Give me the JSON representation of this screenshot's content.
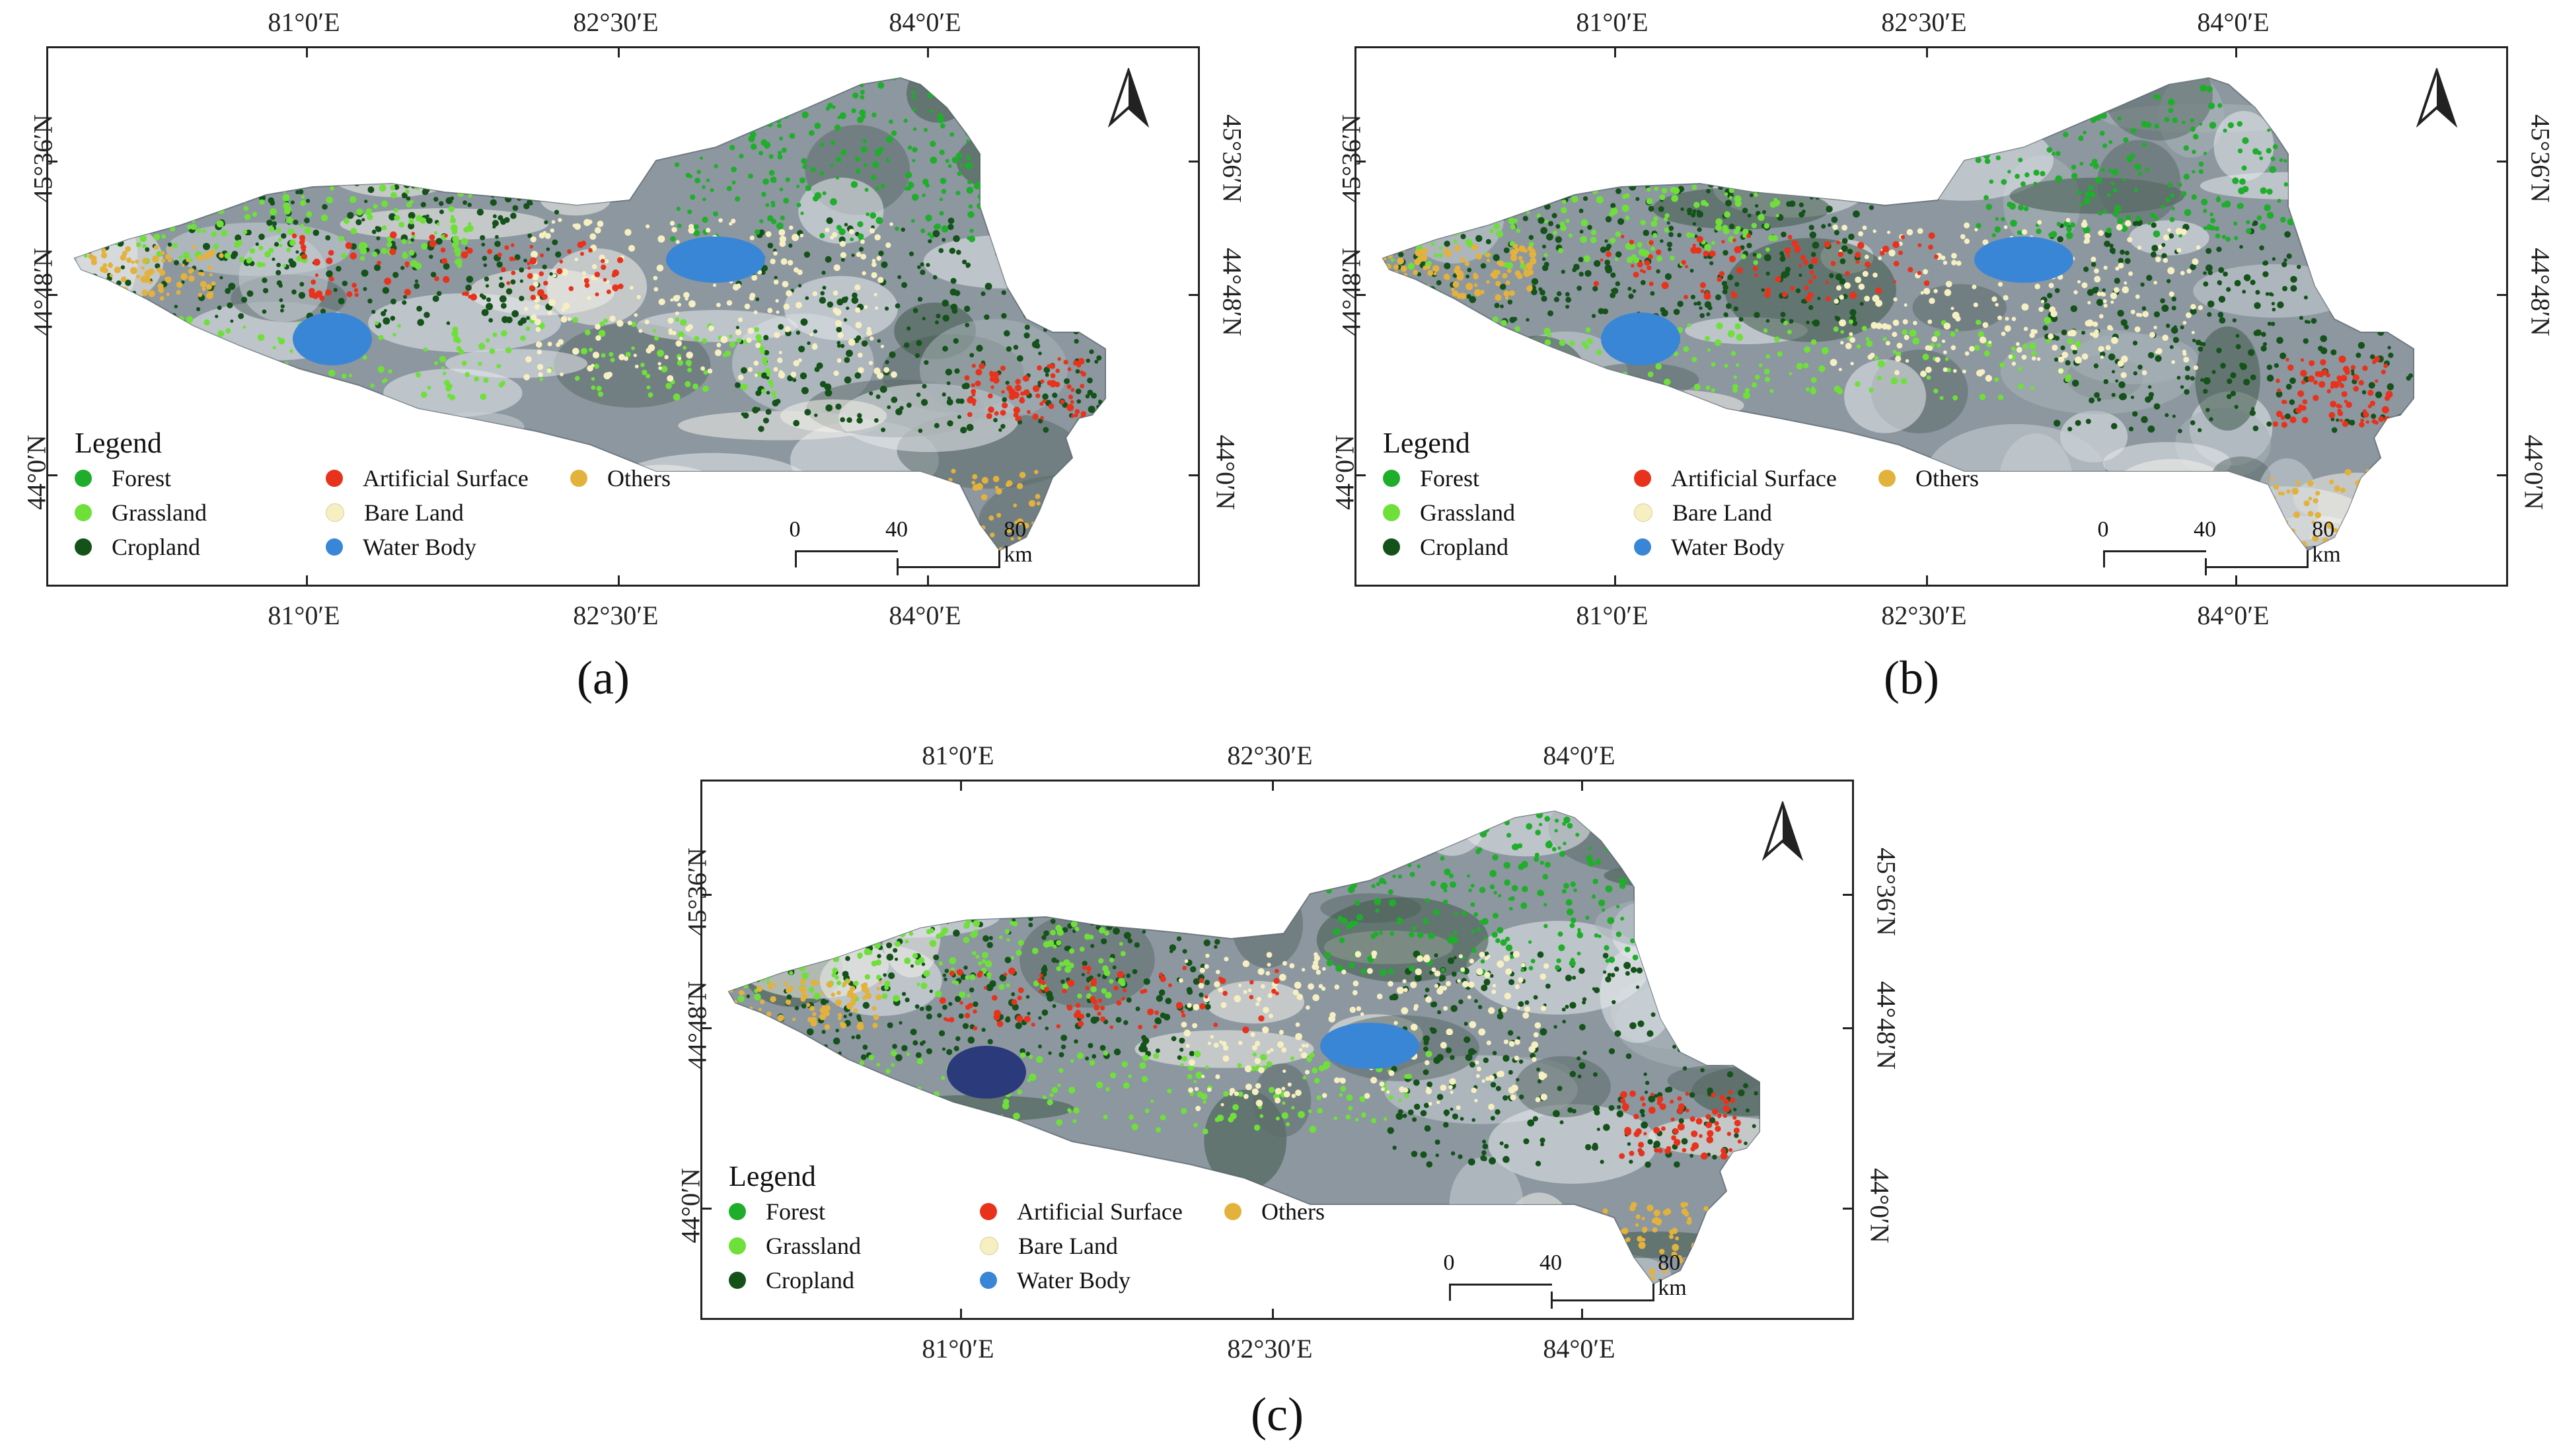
{
  "figure": {
    "panels": [
      {
        "id": "a",
        "caption": "(a)",
        "top_ticks": [
          "81°0′E",
          "82°30′E",
          "84°0′E"
        ],
        "bottom_ticks": [
          "81°0′E",
          "82°30′E",
          "84°0′E"
        ],
        "left_ticks": [
          "45°36′N",
          "44°48′N",
          "44°0′N"
        ],
        "right_ticks": [
          "45°36′N",
          "44°48′N",
          "44°0′N"
        ]
      },
      {
        "id": "b",
        "caption": "(b)",
        "top_ticks": [
          "81°0′E",
          "82°30′E",
          "84°0′E"
        ],
        "bottom_ticks": [
          "81°0′E",
          "82°30′E",
          "84°0′E"
        ],
        "left_ticks": [
          "45°36′N",
          "44°48′N",
          "44°0′N"
        ],
        "right_ticks": [
          "45°36′N",
          "44°48′N",
          "44°0′N"
        ]
      },
      {
        "id": "c",
        "caption": "(c)",
        "top_ticks": [
          "81°0′E",
          "82°30′E",
          "84°0′E"
        ],
        "bottom_ticks": [
          "81°0′E",
          "82°30′E",
          "84°0′E"
        ],
        "left_ticks": [
          "45°36′N",
          "44°48′N",
          "44°0′N"
        ],
        "right_ticks": [
          "45°36′N",
          "44°48′N",
          "44°0′N"
        ]
      }
    ],
    "legend": {
      "title": "Legend",
      "items": [
        {
          "label": "Forest",
          "color": "#1fae2b"
        },
        {
          "label": "Artificial Surface",
          "color": "#e8321c"
        },
        {
          "label": "Others",
          "color": "#e3b23c"
        },
        {
          "label": "Grassland",
          "color": "#6fe03a"
        },
        {
          "label": "Bare Land",
          "color": "#f6efc2"
        },
        {
          "label": "",
          "color": ""
        },
        {
          "label": "Cropland",
          "color": "#14521a"
        },
        {
          "label": "Water Body",
          "color": "#3a86d6"
        },
        {
          "label": "",
          "color": ""
        }
      ]
    },
    "scalebar": {
      "labels": [
        "0",
        "40",
        "80 km"
      ]
    },
    "north_arrow": "north-arrow-icon"
  }
}
